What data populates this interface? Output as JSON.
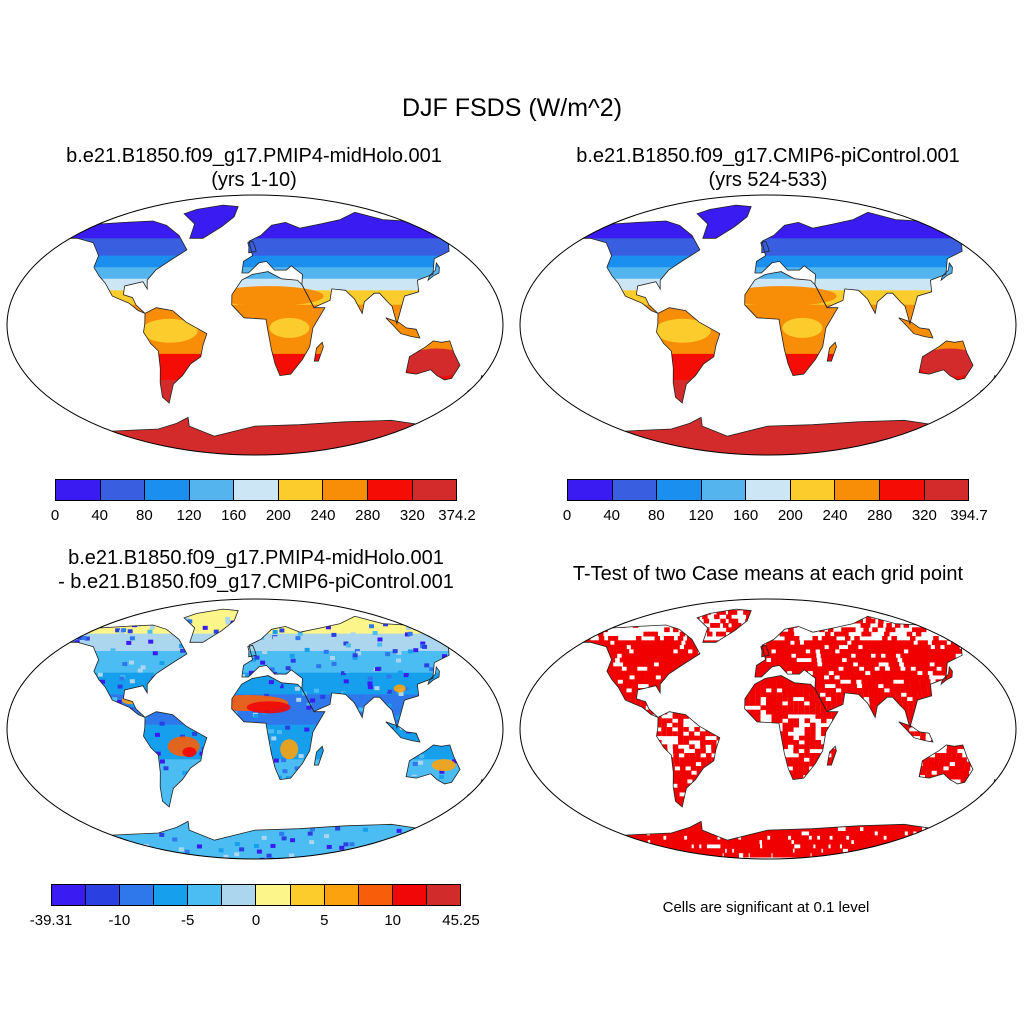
{
  "main_title": "DJF FSDS (W/m^2)",
  "panels": {
    "top_left": {
      "title_line1": "b.e21.B1850.f09_g17.PMIP4-midHolo.001",
      "title_line2": "(yrs 1-10)"
    },
    "top_right": {
      "title_line1": "b.e21.B1850.f09_g17.CMIP6-piControl.001",
      "title_line2": "(yrs 524-533)"
    },
    "bottom_left": {
      "title_line1": "b.e21.B1850.f09_g17.PMIP4-midHolo.001",
      "title_line2": "- b.e21.B1850.f09_g17.CMIP6-piControl.001"
    },
    "bottom_right": {
      "title_line1": "T-Test of two Case means at each grid point",
      "note": "Cells are significant at 0.1 level"
    }
  },
  "colorbars": {
    "abs_colors": [
      "#3a1cf2",
      "#3a5ee0",
      "#1a8ff0",
      "#54b4ee",
      "#cde6f6",
      "#fccb2c",
      "#f88d08",
      "#f50c04",
      "#d32b2b"
    ],
    "diff_colors": [
      "#3a1cf2",
      "#2b40e0",
      "#2e78ec",
      "#169fec",
      "#4cbdf2",
      "#abd6ee",
      "#fcf68a",
      "#fccb2c",
      "#fba20e",
      "#f85e09",
      "#f10707",
      "#d22b2b"
    ],
    "top_left_ticks": [
      "0",
      "40",
      "80",
      "120",
      "160",
      "200",
      "240",
      "280",
      "320",
      "374.2"
    ],
    "top_right_ticks": [
      "0",
      "40",
      "80",
      "120",
      "160",
      "200",
      "240",
      "280",
      "320",
      "394.7"
    ],
    "bottom_left_ticks": [
      "-39.31",
      "-10",
      "-5",
      "0",
      "5",
      "10",
      "45.25"
    ]
  },
  "ttest_color": "#f00000"
}
